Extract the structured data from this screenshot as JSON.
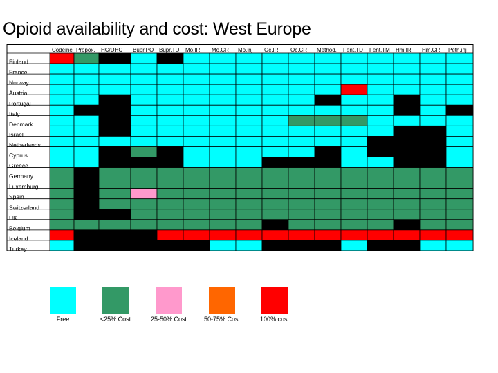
{
  "title": "Opioid availability and cost: West Europe",
  "colors": {
    "C": "#00ffff",
    "G": "#339966",
    "P": "#ff99cc",
    "O": "#ff6600",
    "R": "#ff0000",
    "K": "#000000"
  },
  "chart_data": {
    "type": "table",
    "columns": [
      "Codeine",
      "Propox.",
      "HC/DHC",
      "Bupr.PO",
      "Bupr.TD",
      "Mo.IR",
      "Mo.CR",
      "Mo.inj",
      "Oc.IR",
      "Oc.CR",
      "Method.",
      "Fent.TD",
      "Fent.TM",
      "Hm.IR",
      "Hm.CR",
      "Peth.inj"
    ],
    "rows": [
      {
        "country": "Finland",
        "cells": "RGKCKCCCCCCCCCCC"
      },
      {
        "country": "France",
        "cells": "CCCCCCCCCCCCCCCC"
      },
      {
        "country": "Norway",
        "cells": "CCCCCCCCCCCCCCCC"
      },
      {
        "country": "Austria",
        "cells": "CCCCCCCCCCCRCCCC"
      },
      {
        "country": "Portugal",
        "cells": "CCKCCCCCCCKCCKCC"
      },
      {
        "country": "Italy",
        "cells": "CKKCCCCCCCCCCKCK"
      },
      {
        "country": "Denmark",
        "cells": "CCKCCCCCCGGGCCCC"
      },
      {
        "country": "Israel",
        "cells": "CCKCCCCCCCCCCKKC"
      },
      {
        "country": "Netherlands",
        "cells": "CCCCCCCCCCCCKKKC"
      },
      {
        "country": "Cyprus",
        "cells": "CCKGKCCCCCKCKKKC"
      },
      {
        "country": "Greece",
        "cells": "CCKKKCCCKKKCCKKC"
      },
      {
        "country": "Germany",
        "cells": "GKGGGGGGGGGGGGGG"
      },
      {
        "country": "Luxemburg",
        "cells": "GKGGGGGGGGGGGGGG"
      },
      {
        "country": "Spain",
        "cells": "GKGPGGGGGGGGGGGG"
      },
      {
        "country": "Switzerland",
        "cells": "GKGGGGGGGGGGGGGG"
      },
      {
        "country": "UK",
        "cells": "GKKGGGGGGGGGGGGG"
      },
      {
        "country": "Belgium",
        "cells": "GGGGGGGGKGGGGKGG"
      },
      {
        "country": "Iceland",
        "cells": "RKKKRRRRRRRRRRRR"
      },
      {
        "country": "Turkey",
        "cells": "CKKKKKCCKKKCKKCC"
      }
    ],
    "legend": [
      {
        "key": "C",
        "label": "Free"
      },
      {
        "key": "G",
        "label": "<25% Cost"
      },
      {
        "key": "P",
        "label": "25-50% Cost"
      },
      {
        "key": "O",
        "label": "50-75% Cost"
      },
      {
        "key": "R",
        "label": "100% cost"
      }
    ]
  }
}
